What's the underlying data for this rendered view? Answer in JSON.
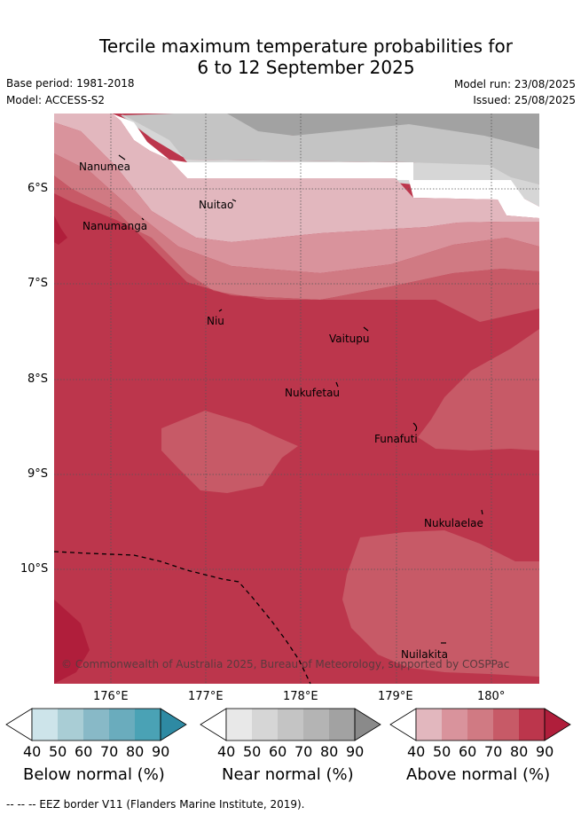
{
  "title_line1": "Tercile maximum temperature probabilities for",
  "title_line2": "6 to 12 September 2025",
  "base_period": "Base period: 1981-2018",
  "model": "Model: ACCESS-S2",
  "model_run": "Model run: 23/08/2025",
  "issued": "Issued: 25/08/2025",
  "lat_ticks": [
    "6°S",
    "7°S",
    "8°S",
    "9°S",
    "10°S"
  ],
  "lon_ticks": [
    "176°E",
    "177°E",
    "178°E",
    "179°E",
    "180°"
  ],
  "places": {
    "nanumea": "Nanumea",
    "nuitao": "Nuitao",
    "nanumanga": "Nanumanga",
    "niu": "Niu",
    "vaitupu": "Vaitupu",
    "nukufetau": "Nukufetau",
    "funafuti": "Funafuti",
    "nukulaelae": "Nukulaelae",
    "nuilakita": "Nuilakita"
  },
  "copyright": "© Commonwealth of Australia 2025, Bureau of Meteorology, supported by COSPPac",
  "colorbars": {
    "levels": [
      "40",
      "50",
      "60",
      "70",
      "80",
      "90"
    ],
    "below_label": "Below normal (%)",
    "near_label": "Near normal (%)",
    "above_label": "Above normal (%)",
    "below_colors": [
      "#ffffff",
      "#cde4ea",
      "#a9cdd5",
      "#88b9c7",
      "#6aacbd",
      "#4aa2b5",
      "#2e8aa3"
    ],
    "near_colors": [
      "#ffffff",
      "#e8e8e8",
      "#d6d6d6",
      "#c4c4c4",
      "#b4b4b4",
      "#a2a2a2",
      "#8a8a8a"
    ],
    "above_colors": [
      "#ffffff",
      "#e2b7be",
      "#d9939c",
      "#d07a83",
      "#c75a67",
      "#bc364c",
      "#b01e3b"
    ]
  },
  "footnote": "--  --  -- EEZ border V11 (Flanders Marine Institute, 2019)."
}
